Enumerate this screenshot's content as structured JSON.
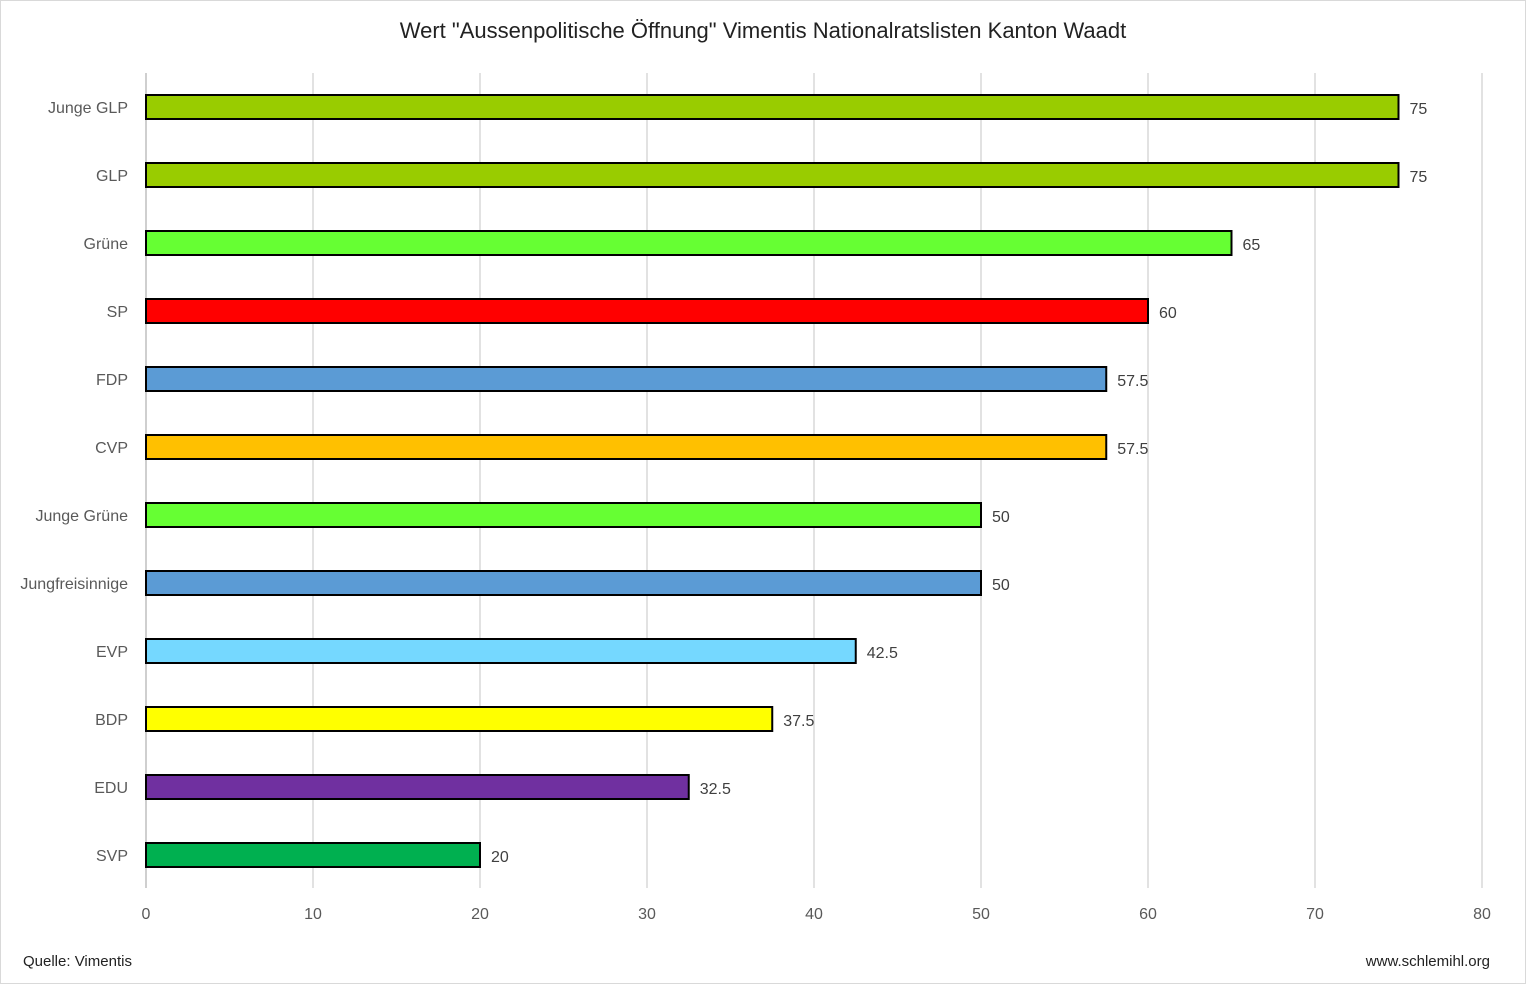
{
  "chart_data": {
    "type": "bar",
    "orientation": "horizontal",
    "title": "Wert \"Aussenpolitische Öffnung\" Vimentis Nationalratslisten Kanton Waadt",
    "xlabel": "",
    "ylabel": "",
    "xlim": [
      0,
      80
    ],
    "x_ticks": [
      "0",
      "10",
      "20",
      "30",
      "40",
      "50",
      "60",
      "70",
      "80"
    ],
    "grid": "vertical",
    "legend": "none",
    "categories": [
      "Junge GLP",
      "GLP",
      "Grüne",
      "SP",
      "FDP",
      "CVP",
      "Junge Grüne",
      "Jungfreisinnige",
      "EVP",
      "BDP",
      "EDU",
      "SVP"
    ],
    "values": [
      75,
      75,
      65,
      60,
      57.5,
      57.5,
      50,
      50,
      42.5,
      37.5,
      32.5,
      20
    ],
    "value_labels": [
      "75",
      "75",
      "65",
      "60",
      "57.5",
      "57.5",
      "50",
      "50",
      "42.5",
      "37.5",
      "32.5",
      "20"
    ],
    "colors": [
      "#99cc00",
      "#99cc00",
      "#66ff33",
      "#ff0000",
      "#5b9bd5",
      "#ffc000",
      "#66ff33",
      "#5b9bd5",
      "#75d8ff",
      "#ffff00",
      "#7030a0",
      "#00b050"
    ]
  },
  "footer": {
    "source": "Quelle: Vimentis",
    "website": "www.schlemihl.org"
  }
}
